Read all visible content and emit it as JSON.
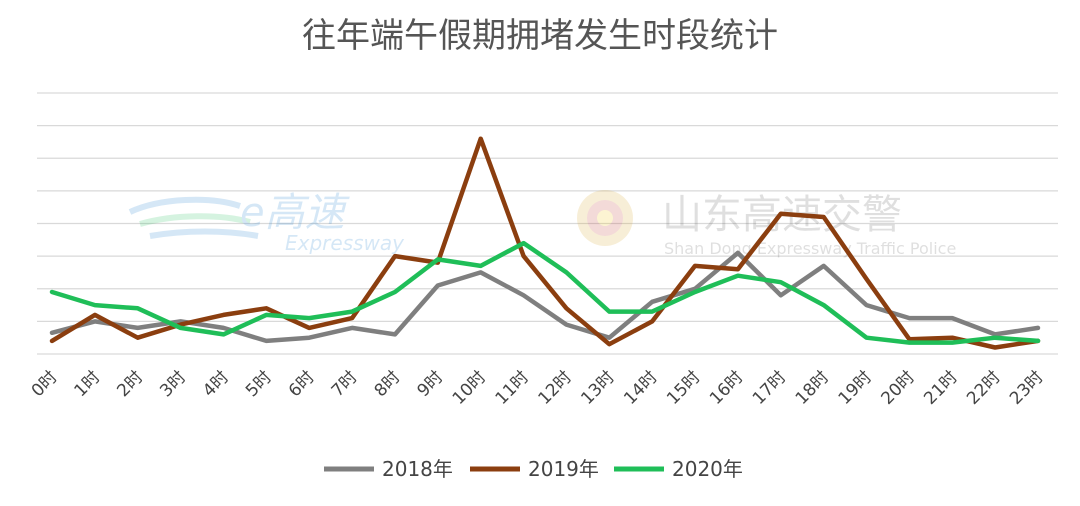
{
  "chart_data": {
    "type": "line",
    "title": "往年端午假期拥堵发生时段统计",
    "categories": [
      "0时",
      "1时",
      "2时",
      "3时",
      "4时",
      "5时",
      "6时",
      "7时",
      "8时",
      "9时",
      "10时",
      "11时",
      "12时",
      "13时",
      "14时",
      "15时",
      "16时",
      "17时",
      "18时",
      "19时",
      "20时",
      "21时",
      "22时",
      "23时"
    ],
    "series": [
      {
        "name": "2018年",
        "color": "#7f7f7f",
        "values": [
          1.3,
          2.0,
          1.6,
          2.0,
          1.6,
          0.8,
          1.0,
          1.6,
          1.2,
          4.2,
          5.0,
          3.6,
          1.8,
          1.0,
          3.2,
          4.0,
          6.2,
          3.6,
          5.4,
          3.0,
          2.2,
          2.2,
          1.2,
          1.6
        ]
      },
      {
        "name": "2019年",
        "color": "#8b3e0f",
        "values": [
          0.8,
          2.4,
          1.0,
          1.8,
          2.4,
          2.8,
          1.6,
          2.2,
          6.0,
          5.6,
          13.2,
          6.0,
          2.8,
          0.6,
          2.0,
          5.4,
          5.2,
          8.6,
          8.4,
          4.6,
          0.9,
          1.0,
          0.4,
          0.8
        ]
      },
      {
        "name": "2020年",
        "color": "#1fbe58",
        "values": [
          3.8,
          3.0,
          2.8,
          1.6,
          1.2,
          2.4,
          2.2,
          2.6,
          3.8,
          5.8,
          5.4,
          6.8,
          5.0,
          2.6,
          2.6,
          3.8,
          4.8,
          4.4,
          3.0,
          1.0,
          0.7,
          0.7,
          1.0,
          0.8
        ]
      }
    ],
    "ylim": [
      0,
      16
    ],
    "y_gridlines": 9,
    "y_tick_labels_shown": false,
    "legend_position": "bottom",
    "grid": true
  },
  "watermark": {
    "logo1_text": "e高速",
    "logo1_sub": "Expressway",
    "logo2_text": "山东高速交警",
    "logo2_sub": "Shan Dong Expressway Traffic Police"
  }
}
